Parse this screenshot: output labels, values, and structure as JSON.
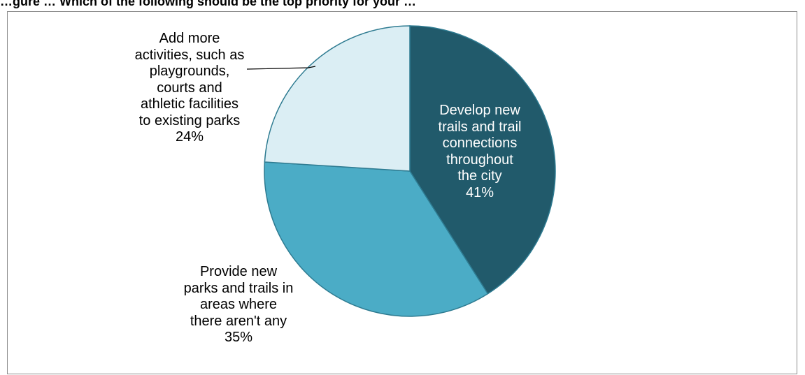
{
  "title": "…gure … Which of the following should be the top priority for your …",
  "chart_data": {
    "type": "pie",
    "title": "",
    "slices": [
      {
        "label": "Develop new trails and trail connections throughout the city",
        "lines": [
          "Develop new",
          "trails and trail",
          "connections",
          "throughout",
          "the city"
        ],
        "value": 41,
        "pct_text": "41%",
        "color": "#215a6b",
        "text_color": "#ffffff"
      },
      {
        "label": "Provide new parks and trails in areas where there aren't any",
        "lines": [
          "Provide new",
          "parks and trails in",
          "areas where",
          "there aren't any"
        ],
        "value": 35,
        "pct_text": "35%",
        "color": "#4bacc6",
        "text_color": "#000000"
      },
      {
        "label": "Add more activities, such as playgrounds, courts and athletic facilities to existing parks",
        "lines": [
          "Add more",
          "activities, such as",
          "playgrounds,",
          "courts and",
          "athletic facilities",
          "to existing parks"
        ],
        "value": 24,
        "pct_text": "24%",
        "color": "#dbeef4",
        "text_color": "#000000"
      }
    ],
    "start_angle_deg": 0,
    "direction": "clockwise",
    "legend": "none",
    "slice_edge_color": "#2e7b91"
  }
}
